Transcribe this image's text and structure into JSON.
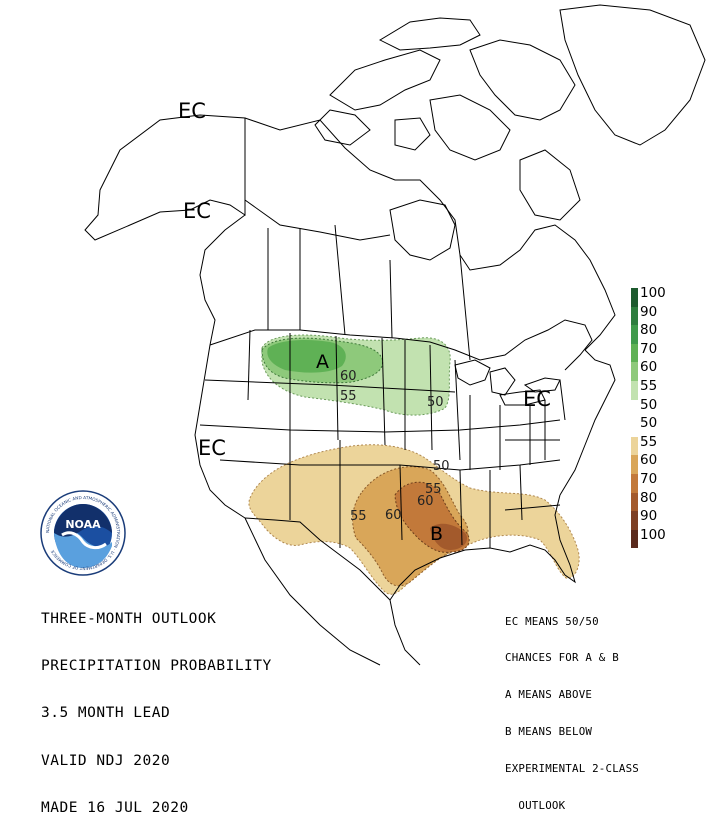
{
  "title_block": {
    "lines": [
      "THREE-MONTH OUTLOOK",
      "PRECIPITATION PROBABILITY",
      "3.5 MONTH LEAD",
      "VALID NDJ 2020",
      "MADE 16 JUL 2020"
    ]
  },
  "legend": {
    "above_levels": [
      "100",
      "90",
      "80",
      "70",
      "60",
      "55"
    ],
    "mid_levels": [
      "50",
      "50"
    ],
    "below_levels": [
      "55",
      "60",
      "70",
      "80",
      "90",
      "100"
    ],
    "above_colors": [
      "#1d5a2e",
      "#2e7d3e",
      "#3f9a4b",
      "#5fb155",
      "#8ec97b",
      "#c2e2b0"
    ],
    "below_colors": [
      "#ecd49a",
      "#d9a659",
      "#c2793a",
      "#a35a2c",
      "#7d3f24",
      "#5a2a1d"
    ]
  },
  "notes": {
    "lines": [
      "EC MEANS 50/50",
      "CHANCES FOR A & B",
      "A MEANS ABOVE",
      "B MEANS BELOW",
      "EXPERIMENTAL 2-CLASS",
      "  OUTLOOK"
    ]
  },
  "map": {
    "ec_labels": [
      "EC",
      "EC",
      "EC",
      "EC"
    ],
    "above_region_letter": "A",
    "below_region_letter": "B",
    "contour_labels": {
      "above_60": "60",
      "above_55": "55",
      "above_50": "50",
      "below_50": "50",
      "below_55_east": "55",
      "below_60_east": "60",
      "below_55_west": "55",
      "below_60_west": "60"
    }
  },
  "logo": {
    "name": "NOAA",
    "ring_text": "NATIONAL OCEANIC AND ATMOSPHERIC ADMINISTRATION · U.S. DEPARTMENT OF COMMERCE"
  }
}
